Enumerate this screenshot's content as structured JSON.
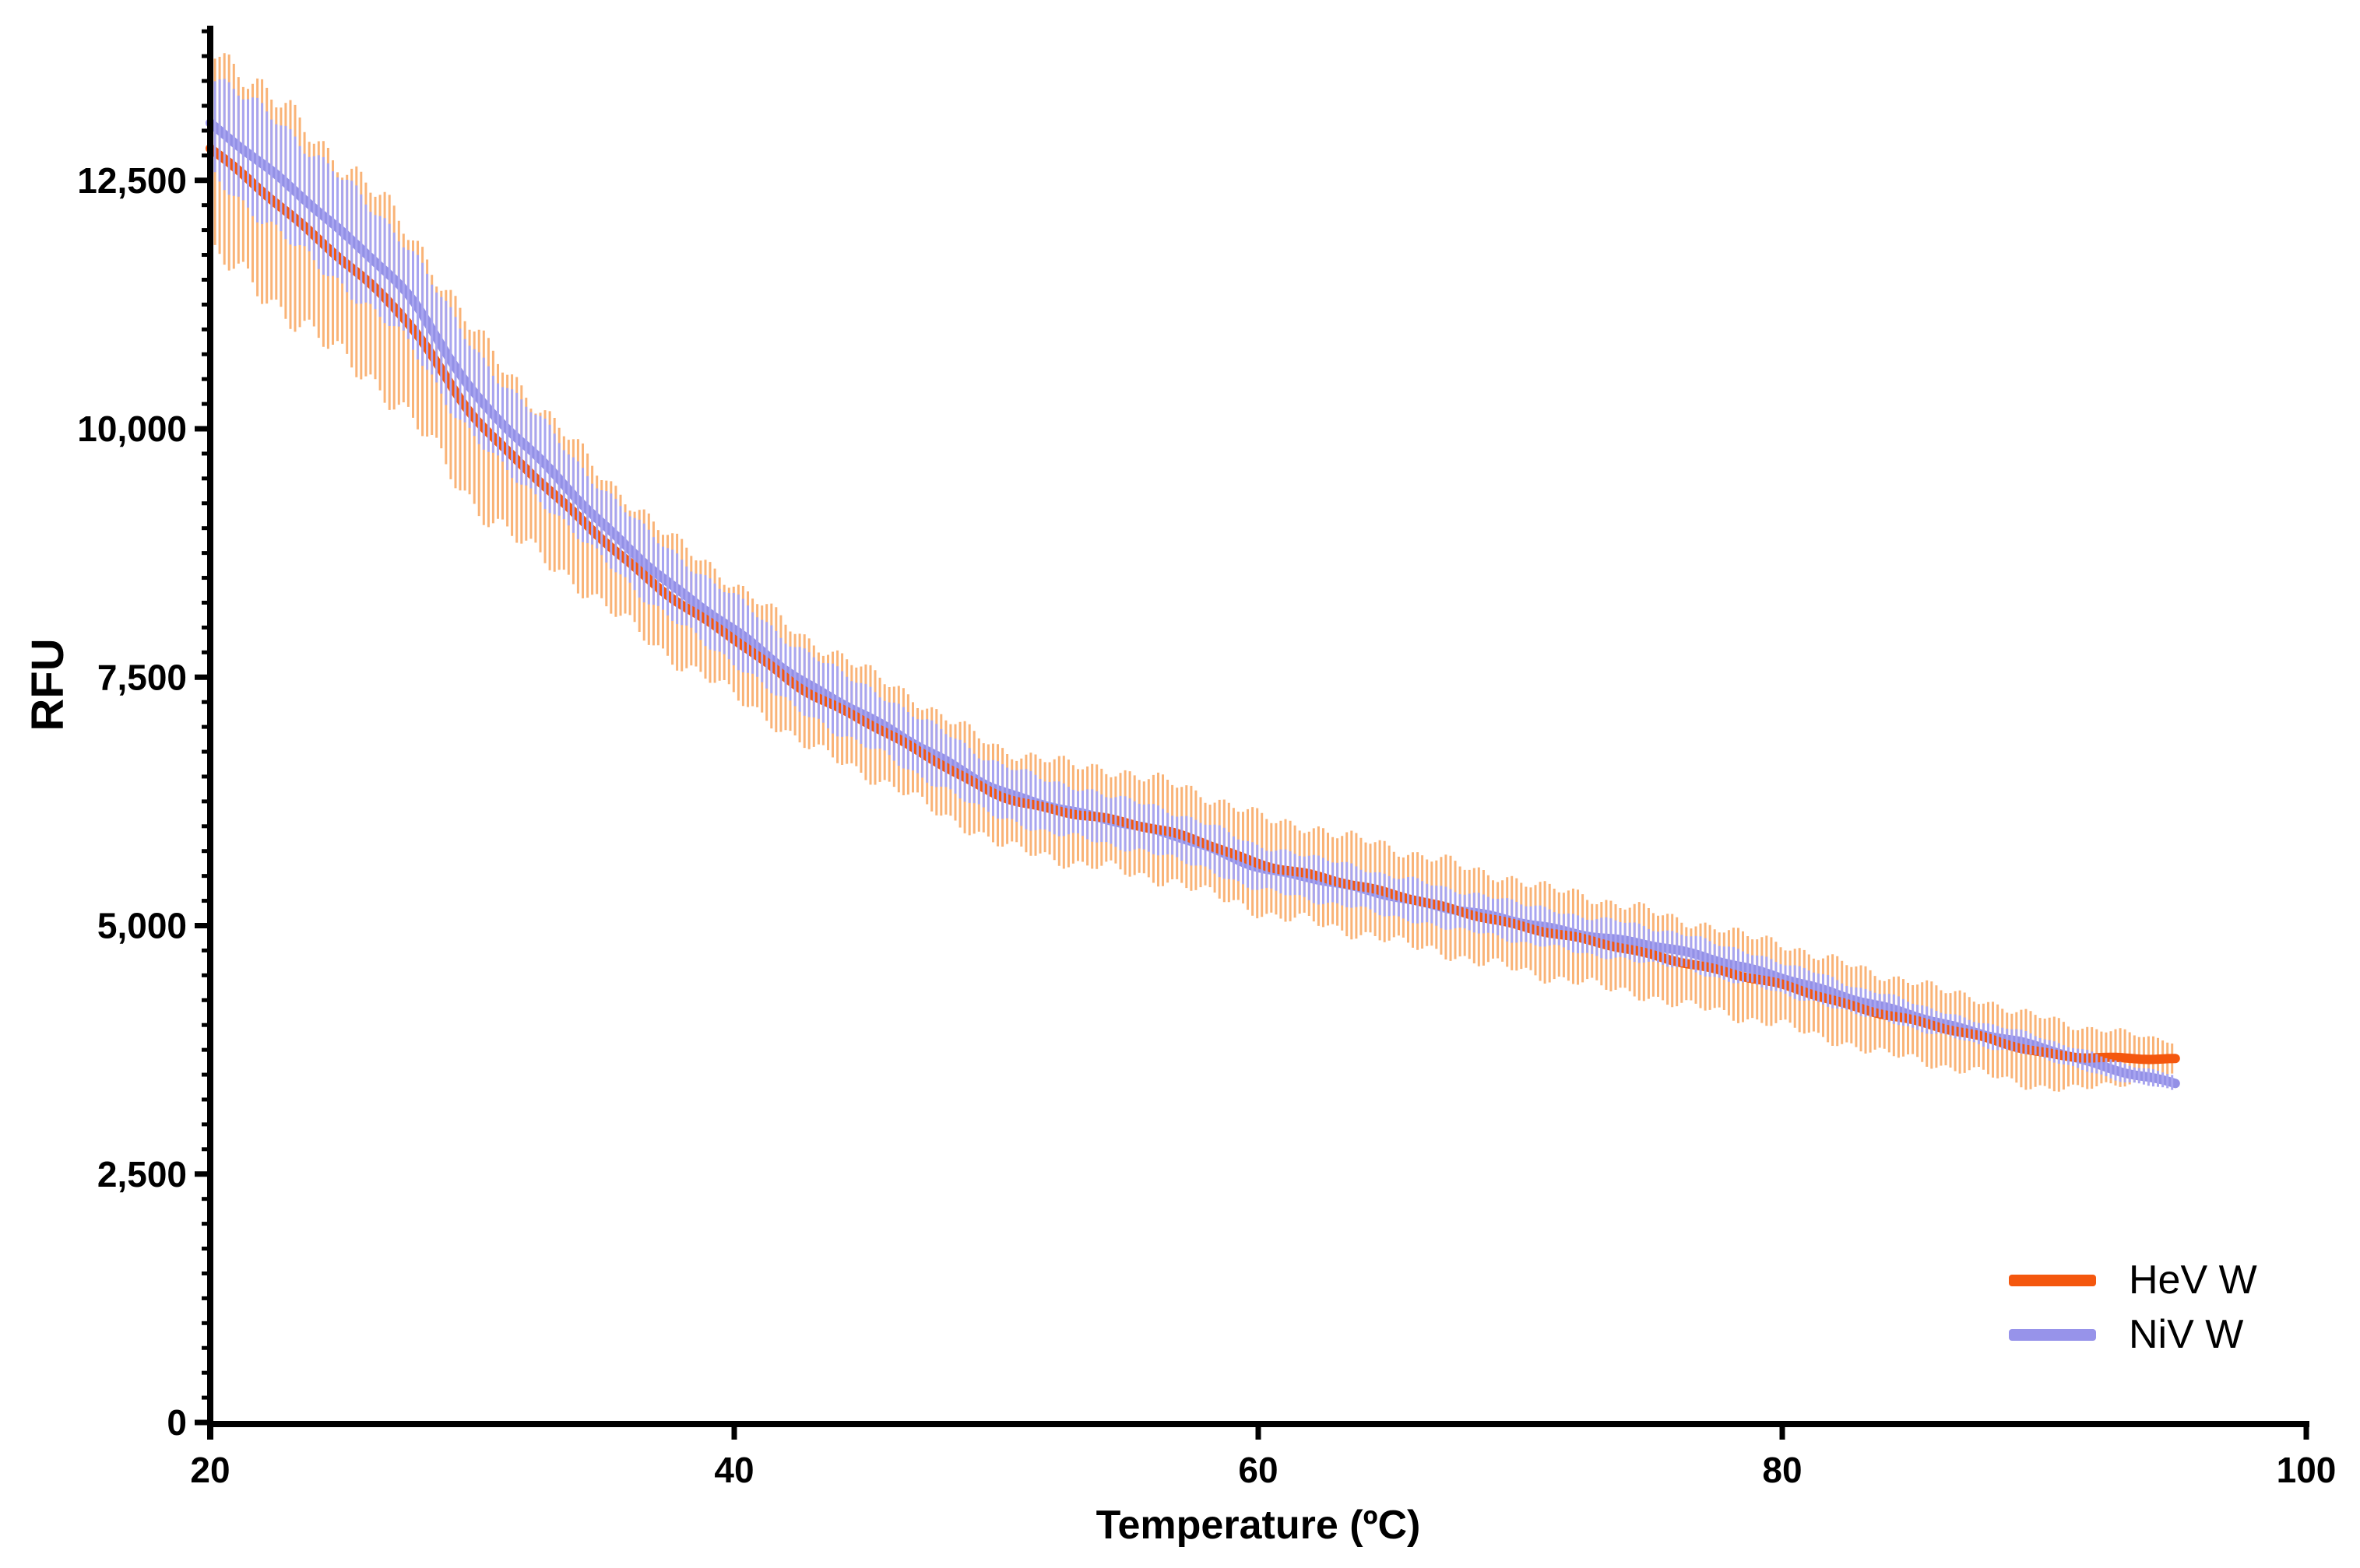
{
  "figure": {
    "background": "#ffffff"
  },
  "axes": {
    "x": {
      "title": "Temperature (ºC)",
      "min": 20,
      "max": 100,
      "major_ticks": [
        20,
        40,
        60,
        80,
        100
      ],
      "tick_labels": [
        "20",
        "40",
        "60",
        "80",
        "100"
      ]
    },
    "y": {
      "title": "RFU",
      "min": 0,
      "max": 14040,
      "major_tick_interval": 2500,
      "minor_tick_interval": 250,
      "major_ticks": [
        0,
        2500,
        5000,
        7500,
        10000,
        12500
      ],
      "tick_labels": [
        "0",
        "2,500",
        "5,000",
        "7,500",
        "10,000",
        "12,500"
      ]
    },
    "color": "#000000"
  },
  "legend": {
    "items": [
      {
        "label": "HeV W",
        "color": "#F4570E"
      },
      {
        "label": "NiV W",
        "color": "#9793EA"
      }
    ]
  },
  "chart_data": {
    "type": "line",
    "title": "",
    "xlabel": "Temperature (ºC)",
    "ylabel": "RFU",
    "xlim": [
      20,
      100
    ],
    "ylim": [
      0,
      14040
    ],
    "grid": false,
    "legend_position": "lower right",
    "x": [
      20,
      22.5,
      25,
      27.5,
      30,
      32.5,
      35,
      37.5,
      40,
      42.5,
      45,
      47.5,
      50,
      52.5,
      55,
      57.5,
      60,
      62.5,
      65,
      67.5,
      70,
      72.5,
      75,
      77.5,
      80,
      82.5,
      85,
      87.5,
      90,
      92.5,
      95
    ],
    "series": [
      {
        "name": "HeV W",
        "color": "#F4570E",
        "error_color": "#F9B377",
        "values": [
          12820,
          12280,
          11710,
          11080,
          10150,
          9490,
          8880,
          8330,
          7880,
          7400,
          7060,
          6680,
          6330,
          6150,
          6030,
          5880,
          5620,
          5480,
          5330,
          5150,
          5000,
          4860,
          4700,
          4560,
          4400,
          4200,
          4050,
          3880,
          3720,
          3670,
          3650
        ],
        "sigma_points": [
          [
            20,
            1050
          ],
          [
            25,
            980
          ],
          [
            30,
            870
          ],
          [
            35,
            640
          ],
          [
            40,
            560
          ],
          [
            45,
            520
          ],
          [
            50,
            480
          ],
          [
            55,
            500
          ],
          [
            60,
            480
          ],
          [
            65,
            470
          ],
          [
            70,
            450
          ],
          [
            75,
            430
          ],
          [
            80,
            410
          ],
          [
            85,
            390
          ],
          [
            90,
            350
          ],
          [
            92.5,
            280
          ],
          [
            95,
            170
          ]
        ]
      },
      {
        "name": "NiV W",
        "color": "#9390E6",
        "error_color": "#A8A5F0",
        "values": [
          13070,
          12550,
          11990,
          11360,
          10380,
          9720,
          9030,
          8450,
          7980,
          7470,
          7120,
          6740,
          6370,
          6180,
          6020,
          5850,
          5595,
          5450,
          5310,
          5165,
          5030,
          4910,
          4800,
          4650,
          4480,
          4270,
          4100,
          3920,
          3760,
          3570,
          3410
        ],
        "sigma_points": [
          [
            20,
            500
          ],
          [
            22.5,
            560
          ],
          [
            25,
            530
          ],
          [
            30,
            450
          ],
          [
            35,
            350
          ],
          [
            40,
            330
          ],
          [
            45,
            300
          ],
          [
            50,
            270
          ],
          [
            55,
            240
          ],
          [
            60,
            220
          ],
          [
            65,
            205
          ],
          [
            70,
            190
          ],
          [
            75,
            180
          ],
          [
            80,
            155
          ],
          [
            85,
            125
          ],
          [
            90,
            105
          ],
          [
            95,
            80
          ]
        ]
      }
    ],
    "error_bar_step_degC": 0.18
  }
}
